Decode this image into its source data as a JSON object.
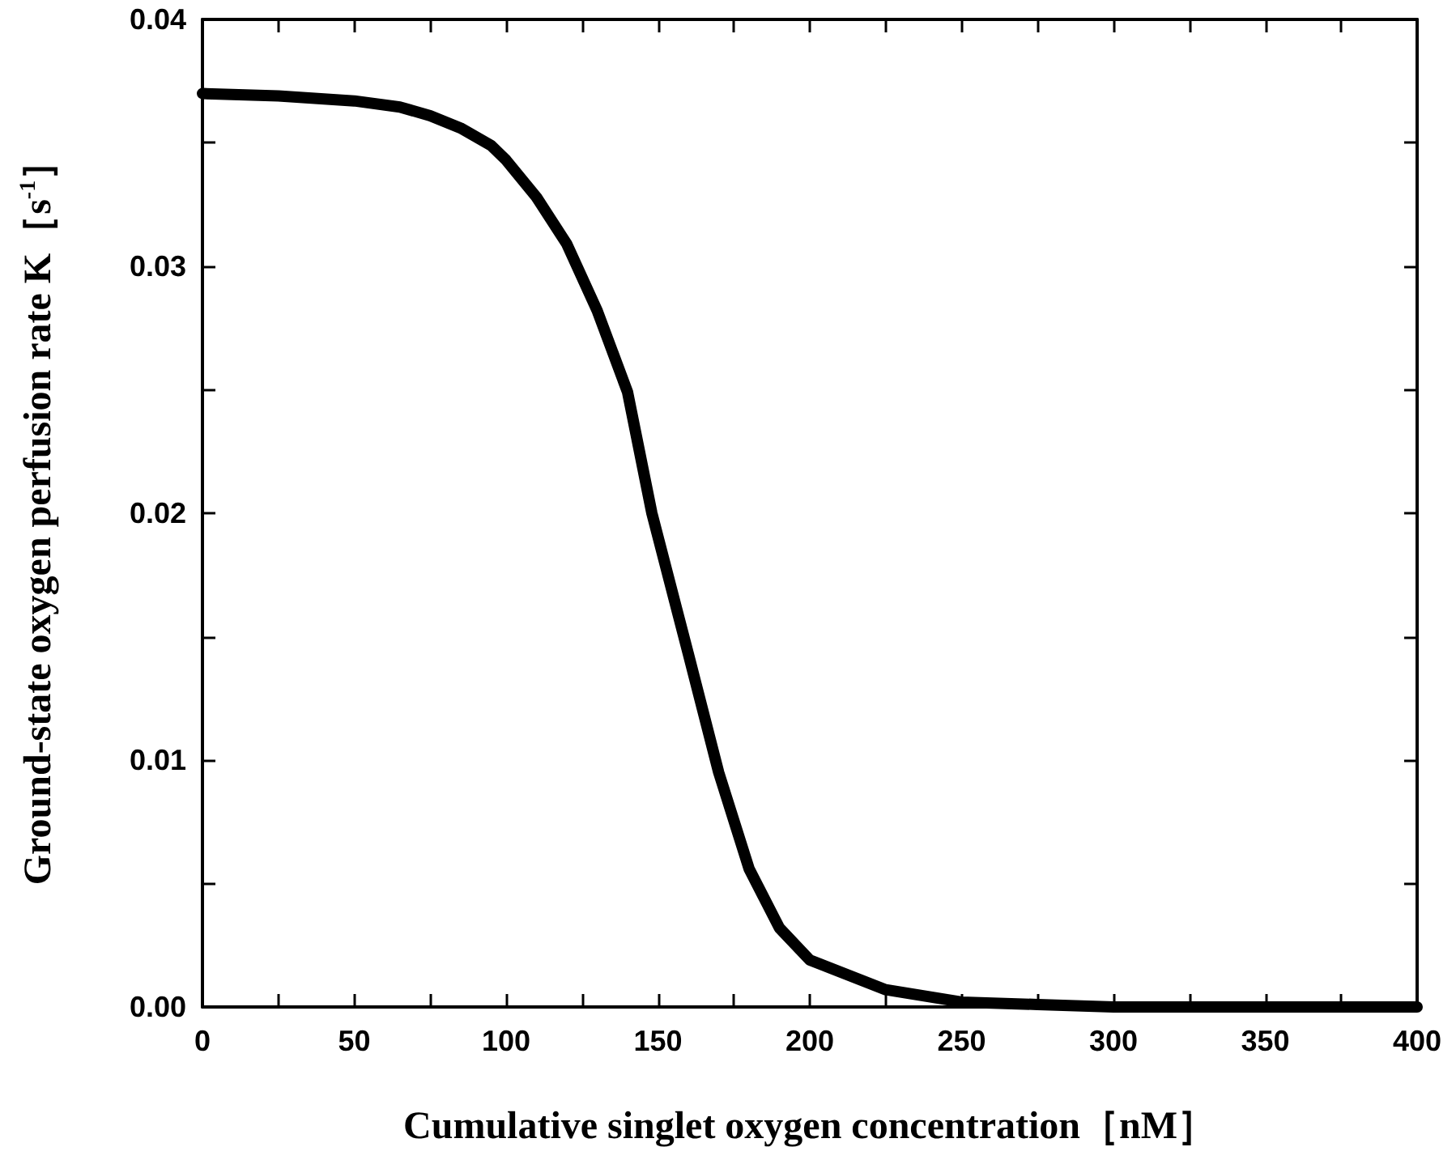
{
  "chart_data": {
    "type": "line",
    "xlabel": "Cumulative singlet oxygen concentration［nM］",
    "ylabel": "Ground-state oxygen perfusion rate K［s$^{-1}$］",
    "x": [
      0,
      25,
      50,
      65,
      75,
      85,
      95,
      100,
      110,
      120,
      130,
      140,
      148,
      160,
      170,
      180,
      190,
      200,
      225,
      250,
      275,
      300,
      350,
      400
    ],
    "series": [
      {
        "color": "#000000",
        "values": [
          0.037,
          0.0369,
          0.0367,
          0.03645,
          0.0361,
          0.0356,
          0.0349,
          0.0343,
          0.0328,
          0.0309,
          0.0282,
          0.0249,
          0.02,
          0.0143,
          0.0095,
          0.0056,
          0.0032,
          0.0019,
          0.0007,
          0.0002,
          0.0001,
          0,
          0,
          0
        ]
      }
    ],
    "xlim": [
      0,
      400
    ],
    "xticks": [
      0,
      {
        "value": 25,
        "label": null
      },
      50,
      {
        "value": 75,
        "label": null
      },
      100,
      {
        "value": 125,
        "label": null
      },
      150,
      {
        "value": 175,
        "label": null
      },
      200,
      {
        "value": 225,
        "label": null
      },
      250,
      {
        "value": 275,
        "label": null
      },
      300,
      {
        "value": 325,
        "label": null
      },
      350,
      {
        "value": 375,
        "label": null
      },
      400
    ],
    "ylim": [
      0,
      0.04
    ],
    "yticks": [
      {
        "value": 0,
        "label": "0.00"
      },
      {
        "value": 0.005,
        "label": null
      },
      0.01,
      {
        "value": 0.015,
        "label": null
      },
      0.02,
      {
        "value": 0.025,
        "label": null
      },
      0.03,
      {
        "value": 0.035,
        "label": null
      },
      0.04
    ],
    "line_style": "solid",
    "grid": false
  }
}
